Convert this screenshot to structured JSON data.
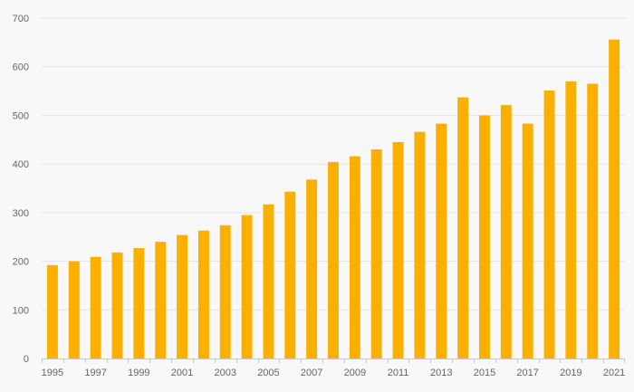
{
  "chart_data": {
    "type": "bar",
    "title": "",
    "xlabel": "",
    "ylabel": "",
    "ylim": [
      0,
      700
    ],
    "yticks": [
      0,
      100,
      200,
      300,
      400,
      500,
      600,
      700
    ],
    "grid": true,
    "legend": "none",
    "bar_color": "#fbb000",
    "categories": [
      "1995",
      "1996",
      "1997",
      "1998",
      "1999",
      "2000",
      "2001",
      "2002",
      "2003",
      "2004",
      "2005",
      "2006",
      "2007",
      "2008",
      "2009",
      "2010",
      "2011",
      "2012",
      "2013",
      "2014",
      "2015",
      "2016",
      "2017",
      "2018",
      "2019",
      "2020",
      "2021"
    ],
    "xtick_labels": [
      "1995",
      "1997",
      "1999",
      "2001",
      "2003",
      "2005",
      "2007",
      "2009",
      "2011",
      "2013",
      "2015",
      "2017",
      "2019",
      "2021"
    ],
    "values": [
      192,
      200,
      209,
      218,
      227,
      240,
      254,
      263,
      274,
      295,
      317,
      343,
      368,
      404,
      416,
      430,
      445,
      466,
      483,
      537,
      500,
      521,
      483,
      551,
      570,
      565,
      656
    ]
  }
}
